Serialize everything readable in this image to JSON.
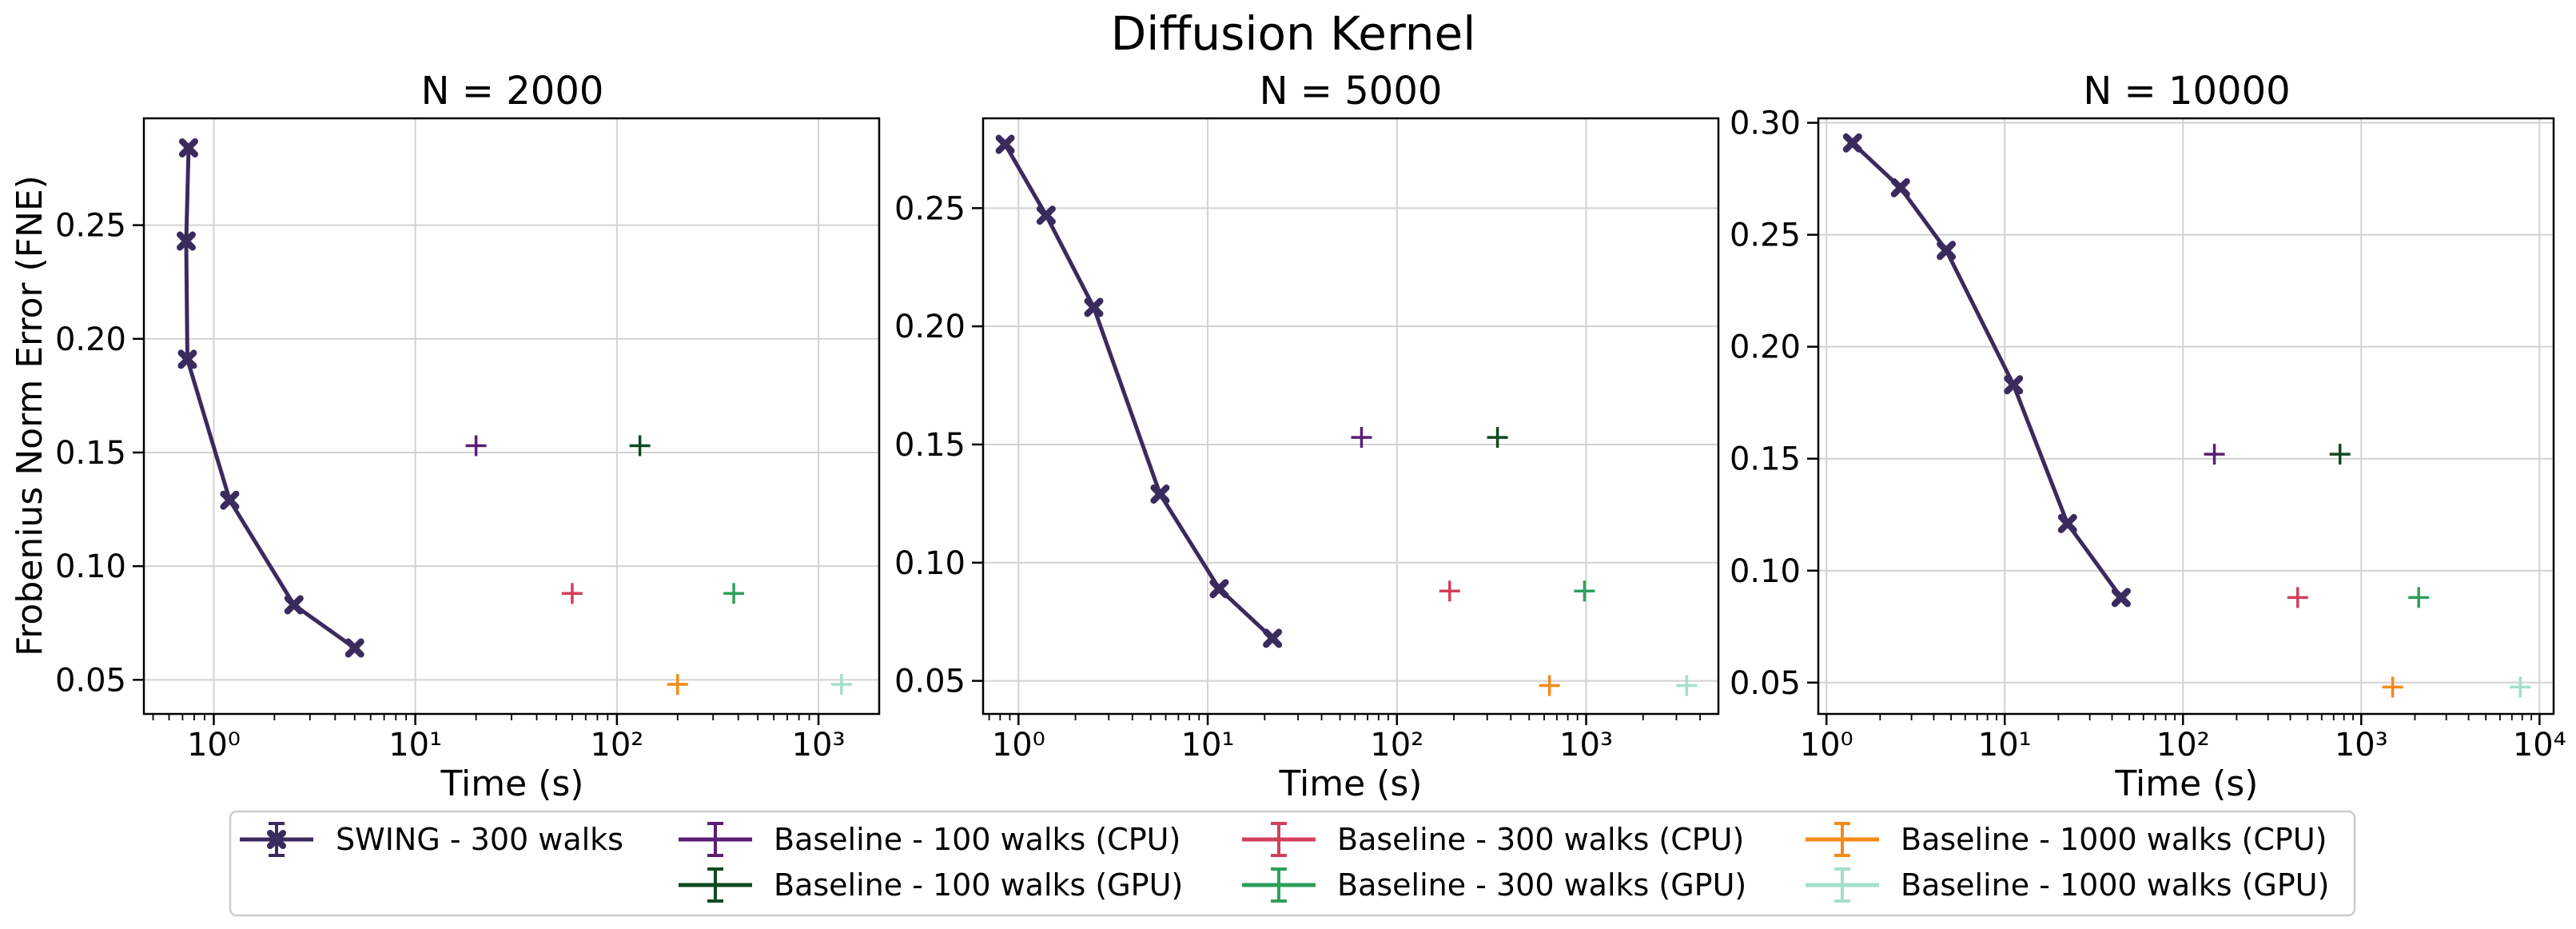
{
  "chart_data": {
    "type": "scatter",
    "title": "Diffusion Kernel",
    "xscale": "log",
    "legend_position": "bottom-center",
    "legend": [
      {
        "label": "SWING - 300 walks",
        "color": "#3b2a5e",
        "style": "line-x-marker"
      },
      {
        "label": "Baseline - 100 walks (GPU)",
        "color": "#0f4a21",
        "style": "plus"
      },
      {
        "label": "Baseline - 100 walks (CPU)",
        "color": "#5b1e73",
        "style": "plus"
      },
      {
        "label": "Baseline - 300 walks (CPU)",
        "color": "#d23f5c",
        "style": "plus"
      },
      {
        "label": "Baseline - 300 walks (GPU)",
        "color": "#2ea05a",
        "style": "plus"
      },
      {
        "label": "Baseline - 1000 walks (CPU)",
        "color": "#f58a16",
        "style": "plus"
      },
      {
        "label": "Baseline - 1000 walks (GPU)",
        "color": "#a3dfcb",
        "style": "plus"
      }
    ],
    "panels": [
      {
        "title": "N = 2000",
        "xlabel": "Time (s)",
        "ylabel": "Frobenius Norm Error (FNE)",
        "xlim": [
          0.45,
          2000
        ],
        "ylim": [
          0.035,
          0.297
        ],
        "xticks": [
          {
            "value": 1,
            "label": "10⁰"
          },
          {
            "value": 10,
            "label": "10¹"
          },
          {
            "value": 100,
            "label": "10²"
          },
          {
            "value": 1000,
            "label": "10³"
          }
        ],
        "yticks": [
          {
            "value": 0.05,
            "label": "0.05"
          },
          {
            "value": 0.1,
            "label": "0.10"
          },
          {
            "value": 0.15,
            "label": "0.15"
          },
          {
            "value": 0.2,
            "label": "0.20"
          },
          {
            "value": 0.25,
            "label": "0.25"
          }
        ],
        "swing": {
          "x": [
            0.75,
            0.73,
            0.74,
            1.2,
            2.5,
            5.0
          ],
          "y": [
            0.284,
            0.243,
            0.191,
            0.129,
            0.083,
            0.064
          ]
        },
        "baselines": [
          {
            "name": "Baseline - 100 walks (CPU)",
            "x": 20,
            "y": 0.153
          },
          {
            "name": "Baseline - 100 walks (GPU)",
            "x": 130,
            "y": 0.153
          },
          {
            "name": "Baseline - 300 walks (CPU)",
            "x": 60,
            "y": 0.088
          },
          {
            "name": "Baseline - 300 walks (GPU)",
            "x": 380,
            "y": 0.088
          },
          {
            "name": "Baseline - 1000 walks (CPU)",
            "x": 200,
            "y": 0.048
          },
          {
            "name": "Baseline - 1000 walks (GPU)",
            "x": 1300,
            "y": 0.048
          }
        ]
      },
      {
        "title": "N = 5000",
        "xlabel": "Time (s)",
        "ylabel": "",
        "xlim": [
          0.65,
          5000
        ],
        "ylim": [
          0.036,
          0.288
        ],
        "xticks": [
          {
            "value": 1,
            "label": "10⁰"
          },
          {
            "value": 10,
            "label": "10¹"
          },
          {
            "value": 100,
            "label": "10²"
          },
          {
            "value": 1000,
            "label": "10³"
          }
        ],
        "yticks": [
          {
            "value": 0.05,
            "label": "0.05"
          },
          {
            "value": 0.1,
            "label": "0.10"
          },
          {
            "value": 0.15,
            "label": "0.15"
          },
          {
            "value": 0.2,
            "label": "0.20"
          },
          {
            "value": 0.25,
            "label": "0.25"
          }
        ],
        "swing": {
          "x": [
            0.85,
            1.4,
            2.5,
            5.6,
            11.5,
            22
          ],
          "y": [
            0.277,
            0.247,
            0.208,
            0.129,
            0.089,
            0.068
          ]
        },
        "baselines": [
          {
            "name": "Baseline - 100 walks (CPU)",
            "x": 65,
            "y": 0.153
          },
          {
            "name": "Baseline - 100 walks (GPU)",
            "x": 340,
            "y": 0.153
          },
          {
            "name": "Baseline - 300 walks (CPU)",
            "x": 190,
            "y": 0.088
          },
          {
            "name": "Baseline - 300 walks (GPU)",
            "x": 980,
            "y": 0.088
          },
          {
            "name": "Baseline - 1000 walks (CPU)",
            "x": 640,
            "y": 0.048
          },
          {
            "name": "Baseline - 1000 walks (GPU)",
            "x": 3400,
            "y": 0.048
          }
        ]
      },
      {
        "title": "N = 10000",
        "xlabel": "Time (s)",
        "ylabel": "",
        "xlim": [
          0.9,
          12000
        ],
        "ylim": [
          0.036,
          0.302
        ],
        "xticks": [
          {
            "value": 1,
            "label": "10⁰"
          },
          {
            "value": 10,
            "label": "10¹"
          },
          {
            "value": 100,
            "label": "10²"
          },
          {
            "value": 1000,
            "label": "10³"
          },
          {
            "value": 10000,
            "label": "10⁴"
          }
        ],
        "yticks": [
          {
            "value": 0.05,
            "label": "0.05"
          },
          {
            "value": 0.1,
            "label": "0.10"
          },
          {
            "value": 0.15,
            "label": "0.15"
          },
          {
            "value": 0.2,
            "label": "0.20"
          },
          {
            "value": 0.25,
            "label": "0.25"
          },
          {
            "value": 0.3,
            "label": "0.30"
          }
        ],
        "swing": {
          "x": [
            1.4,
            2.6,
            4.7,
            11.2,
            22.5,
            45
          ],
          "y": [
            0.291,
            0.271,
            0.243,
            0.183,
            0.121,
            0.088
          ]
        },
        "baselines": [
          {
            "name": "Baseline - 100 walks (CPU)",
            "x": 150,
            "y": 0.152
          },
          {
            "name": "Baseline - 100 walks (GPU)",
            "x": 760,
            "y": 0.152
          },
          {
            "name": "Baseline - 300 walks (CPU)",
            "x": 440,
            "y": 0.088
          },
          {
            "name": "Baseline - 300 walks (GPU)",
            "x": 2100,
            "y": 0.088
          },
          {
            "name": "Baseline - 1000 walks (CPU)",
            "x": 1500,
            "y": 0.048
          },
          {
            "name": "Baseline - 1000 walks (GPU)",
            "x": 7800,
            "y": 0.048
          }
        ]
      }
    ]
  }
}
